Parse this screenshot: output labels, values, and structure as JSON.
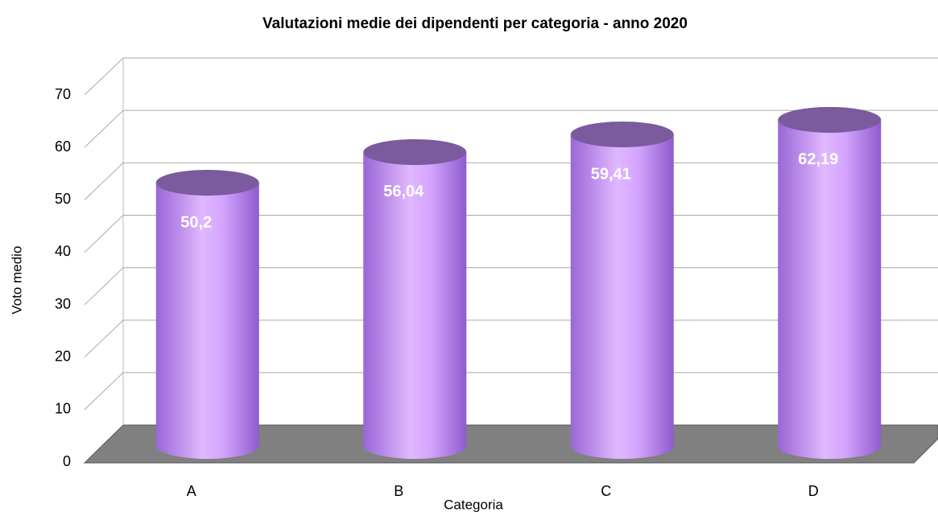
{
  "chart_data": {
    "type": "bar",
    "title": "Valutazioni medie dei dipendenti per categoria - anno 2020",
    "x_label": "Categoria",
    "y_label": "Voto medio",
    "categories": [
      "A",
      "B",
      "C",
      "D"
    ],
    "values": [
      50.2,
      56.04,
      59.41,
      62.19
    ],
    "value_labels": [
      "50,2",
      "56,04",
      "59,41",
      "62,19"
    ],
    "color": "#cf9cff",
    "ylim": [
      0,
      70
    ],
    "yticks": [
      0,
      10,
      20,
      30,
      40,
      50,
      60,
      70
    ],
    "grid": true
  }
}
